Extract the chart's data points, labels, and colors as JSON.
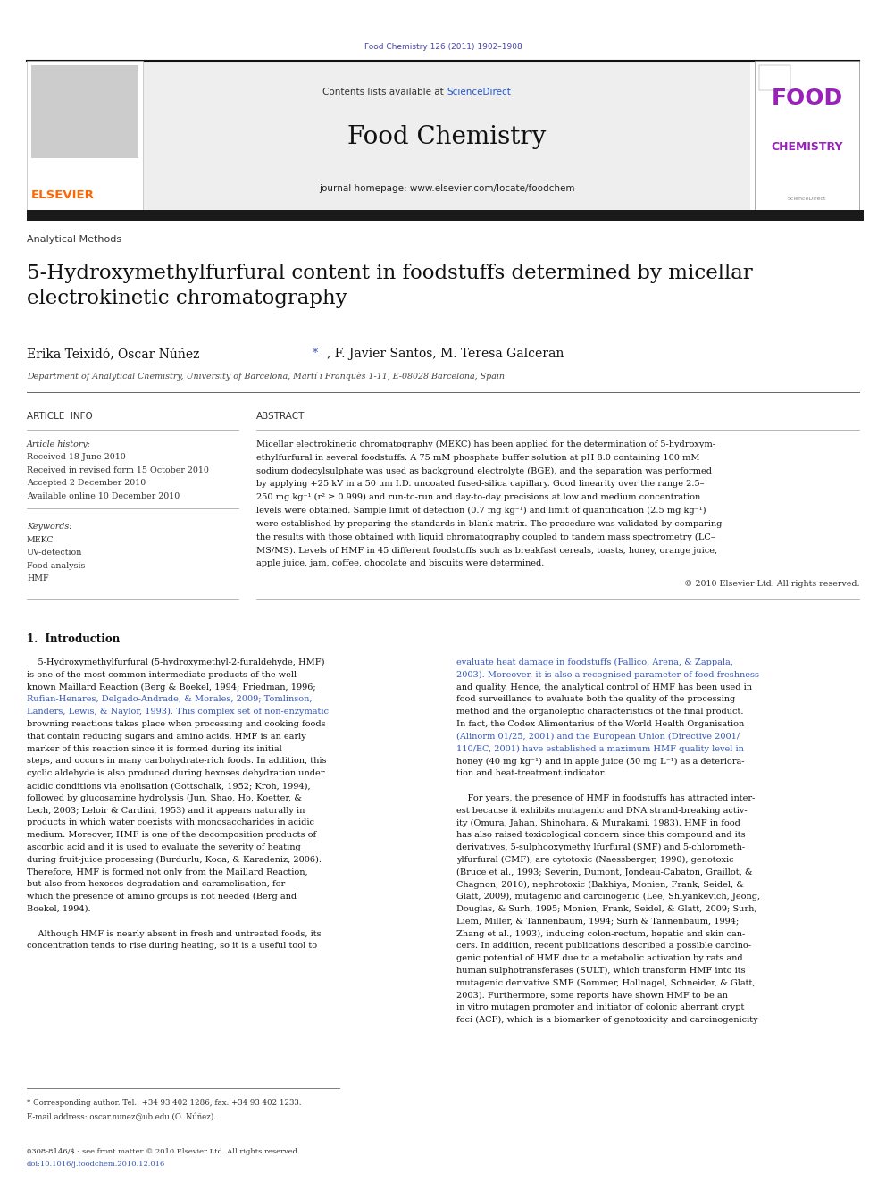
{
  "page_width": 9.92,
  "page_height": 13.23,
  "bg_color": "#ffffff",
  "journal_ref": "Food Chemistry 126 (2011) 1902–1908",
  "journal_ref_color": "#4444aa",
  "header_bg": "#eeeeee",
  "sciencedirect_color": "#2255cc",
  "journal_title": "Food Chemistry",
  "journal_homepage": "journal homepage: www.elsevier.com/locate/foodchem",
  "section_label": "Analytical Methods",
  "paper_title": "5-Hydroxymethylfurfural content in foodstuffs determined by micellar\nelectrokinetic chromatography",
  "affiliation": "Department of Analytical Chemistry, University of Barcelona, Martí i Franquès 1-11, E-08028 Barcelona, Spain",
  "article_info_header": "ARTICLE  INFO",
  "abstract_header": "ABSTRACT",
  "article_history_label": "Article history:",
  "received": "Received 18 June 2010",
  "revised": "Received in revised form 15 October 2010",
  "accepted": "Accepted 2 December 2010",
  "available": "Available online 10 December 2010",
  "keywords_label": "Keywords:",
  "keywords": [
    "MEKC",
    "UV-detection",
    "Food analysis",
    "HMF"
  ],
  "copyright": "© 2010 Elsevier Ltd. All rights reserved.",
  "footnote1": "* Corresponding author. Tel.: +34 93 402 1286; fax: +34 93 402 1233.",
  "footnote2": "E-mail address: oscar.nunez@ub.edu (O. Núñez).",
  "footer1": "0308-8146/$ - see front matter © 2010 Elsevier Ltd. All rights reserved.",
  "footer2": "doi:10.1016/j.foodchem.2010.12.016",
  "elsevier_orange": "#FF6600",
  "link_color": "#3355bb",
  "food_chem_purple": "#9922bb",
  "text_color": "#111111",
  "gray_text": "#444444"
}
